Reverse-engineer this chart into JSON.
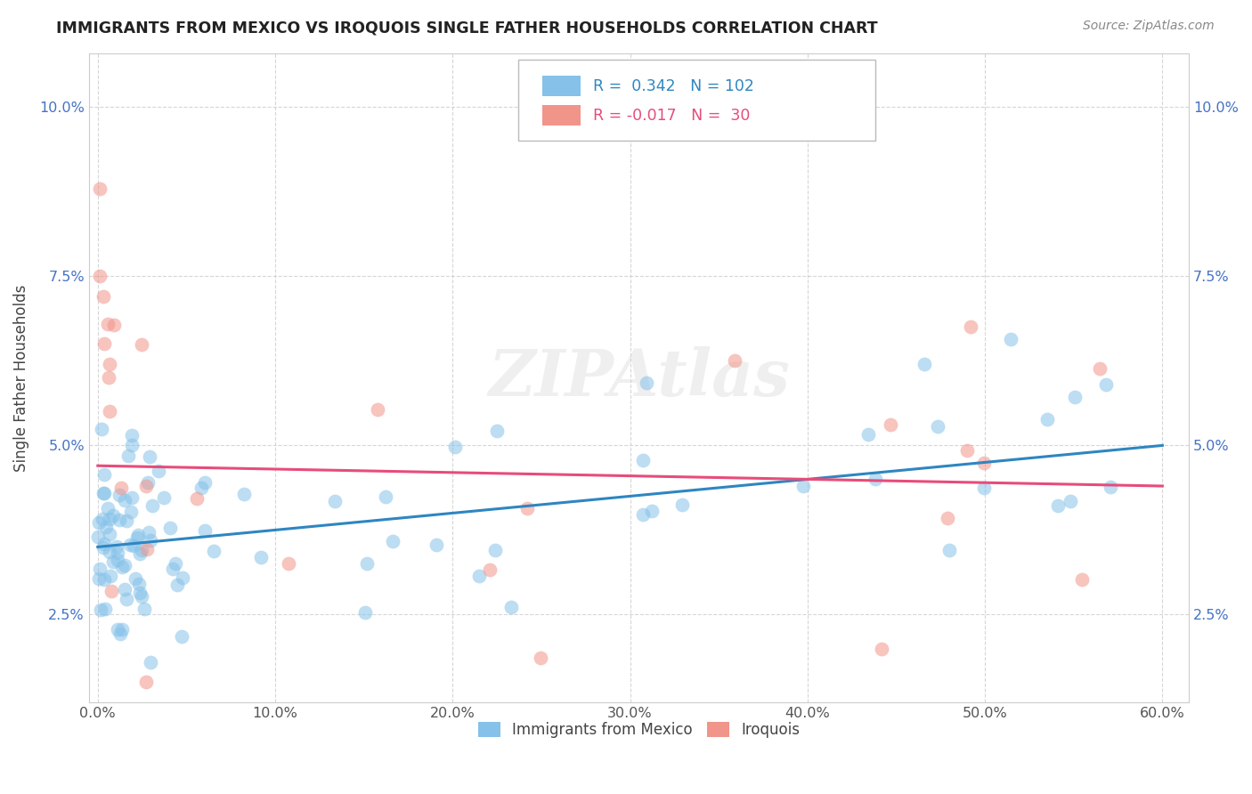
{
  "title": "IMMIGRANTS FROM MEXICO VS IROQUOIS SINGLE FATHER HOUSEHOLDS CORRELATION CHART",
  "source": "Source: ZipAtlas.com",
  "ylabel": "Single Father Households",
  "legend_labels": [
    "Immigrants from Mexico",
    "Iroquois"
  ],
  "blue_R": 0.342,
  "blue_N": 102,
  "pink_R": -0.017,
  "pink_N": 30,
  "xlim": [
    -0.005,
    0.615
  ],
  "ylim": [
    0.012,
    0.108
  ],
  "xticks": [
    0.0,
    0.1,
    0.2,
    0.3,
    0.4,
    0.5,
    0.6
  ],
  "xtick_labels": [
    "0.0%",
    "10.0%",
    "20.0%",
    "30.0%",
    "40.0%",
    "50.0%",
    "60.0%"
  ],
  "yticks": [
    0.025,
    0.05,
    0.075,
    0.1
  ],
  "ytick_labels": [
    "2.5%",
    "5.0%",
    "7.5%",
    "10.0%"
  ],
  "blue_color": "#85c1e9",
  "pink_color": "#f1948a",
  "blue_line_color": "#2e86c1",
  "pink_line_color": "#e74c7a",
  "blue_trend_start": 0.035,
  "blue_trend_end": 0.05,
  "pink_trend_y": 0.046,
  "grid_color": "#cccccc",
  "watermark": "ZIPAtlas"
}
